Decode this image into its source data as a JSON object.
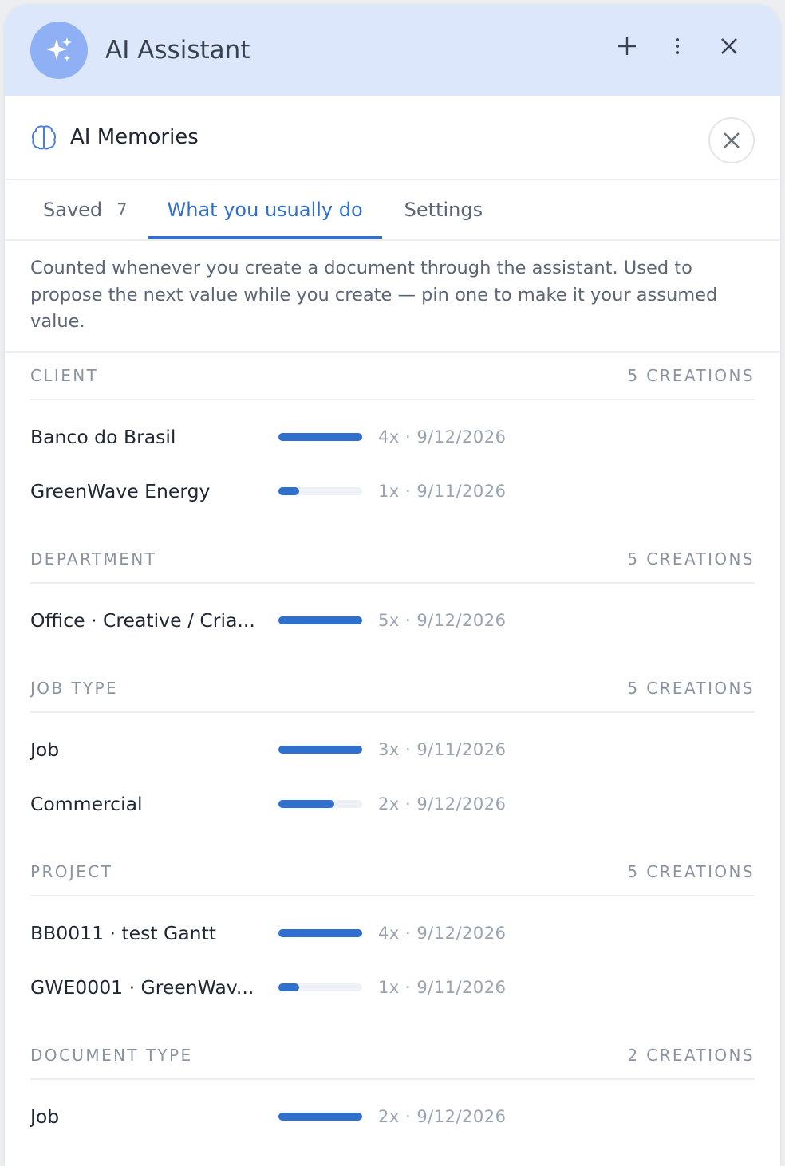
{
  "header": {
    "title": "AI Assistant"
  },
  "panel": {
    "title": "AI Memories"
  },
  "tabs": [
    {
      "label": "Saved",
      "count": "7"
    },
    {
      "label": "What you usually do"
    },
    {
      "label": "Settings"
    }
  ],
  "description": "Counted whenever you create a document through the assistant. Used to propose the next value while you create — pin one to make it your assumed value.",
  "groups": [
    {
      "label": "CLIENT",
      "total": "5 CREATIONS",
      "items": [
        {
          "name": "Banco do Brasil",
          "count": 4,
          "stat": "4x · 9/12/2026"
        },
        {
          "name": "GreenWave Energy",
          "count": 1,
          "stat": "1x · 9/11/2026"
        }
      ]
    },
    {
      "label": "DEPARTMENT",
      "total": "5 CREATIONS",
      "items": [
        {
          "name": "Office · Creative / Cria...",
          "count": 5,
          "stat": "5x · 9/12/2026"
        }
      ]
    },
    {
      "label": "JOB TYPE",
      "total": "5 CREATIONS",
      "items": [
        {
          "name": "Job",
          "count": 3,
          "stat": "3x · 9/11/2026"
        },
        {
          "name": "Commercial",
          "count": 2,
          "stat": "2x · 9/12/2026"
        }
      ]
    },
    {
      "label": "PROJECT",
      "total": "5 CREATIONS",
      "items": [
        {
          "name": "BB0011 · test Gantt",
          "count": 4,
          "stat": "4x · 9/12/2026"
        },
        {
          "name": "GWE0001 · GreenWav...",
          "count": 1,
          "stat": "1x · 9/11/2026"
        }
      ]
    },
    {
      "label": "DOCUMENT TYPE",
      "total": "2 CREATIONS",
      "items": [
        {
          "name": "Job",
          "count": 2,
          "stat": "2x · 9/12/2026"
        }
      ]
    }
  ]
}
